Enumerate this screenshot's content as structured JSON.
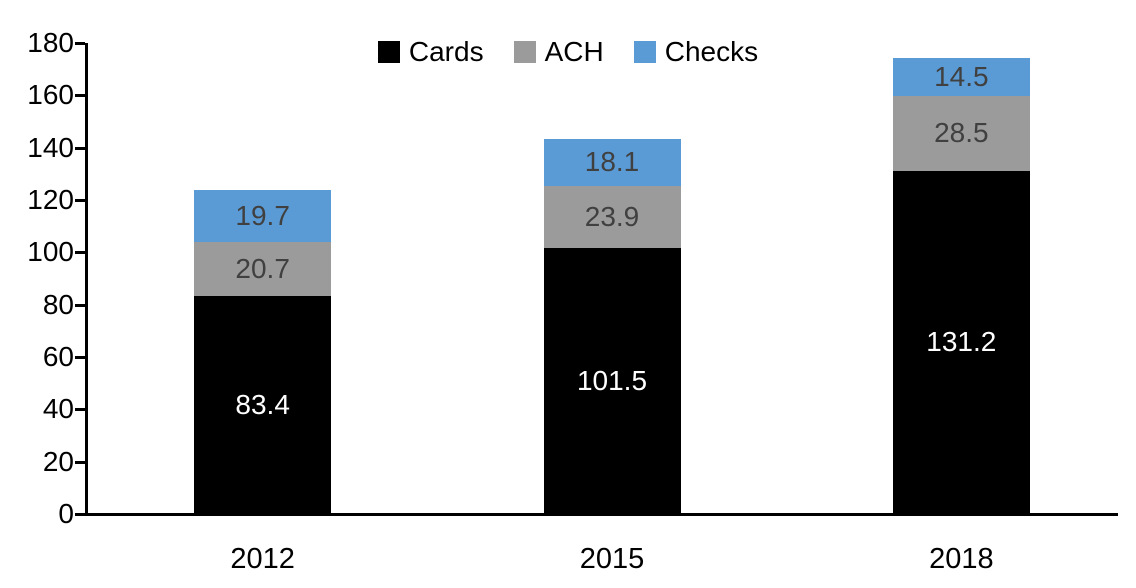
{
  "chart_data": {
    "type": "bar",
    "stacked": true,
    "title": "",
    "xlabel": "",
    "ylabel": "",
    "categories": [
      "2012",
      "2015",
      "2018"
    ],
    "series": [
      {
        "name": "Cards",
        "color": "#000000",
        "label_color": "#ffffff",
        "values": [
          83.4,
          101.5,
          131.2
        ]
      },
      {
        "name": "ACH",
        "color": "#9b9b9b",
        "label_color": "#404040",
        "values": [
          20.7,
          23.9,
          28.5
        ]
      },
      {
        "name": "Checks",
        "color": "#5b9bd5",
        "label_color": "#404040",
        "values": [
          19.7,
          18.1,
          14.5
        ]
      }
    ],
    "totals": [
      123.8,
      143.5,
      174.2
    ],
    "ylim": [
      0,
      180
    ],
    "yticks": [
      0,
      20,
      40,
      60,
      80,
      100,
      120,
      140,
      160,
      180
    ],
    "grid": false,
    "legend_position": "top",
    "axis_color": "#000000",
    "background": "#ffffff"
  }
}
